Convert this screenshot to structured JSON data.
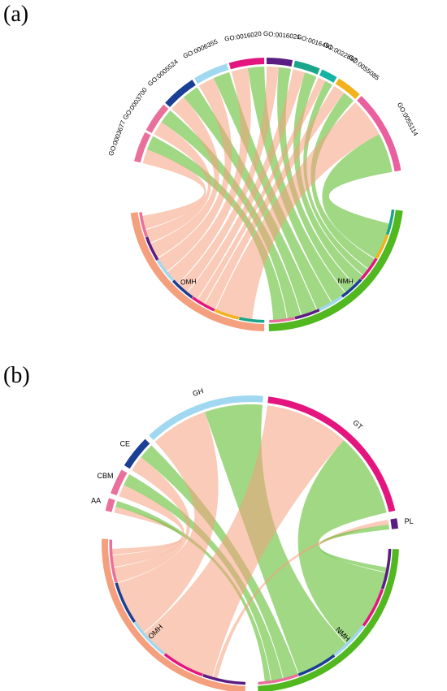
{
  "panels": [
    {
      "id": "a",
      "label": "(a)",
      "colors": {
        "OMH": "#f4a07e",
        "NMH": "#52b81f"
      },
      "groups": [
        {
          "name": "GO:0003677",
          "color": "#e9709a"
        },
        {
          "name": "GO:0003700",
          "color": "#e9709a"
        },
        {
          "name": "GO:0005524",
          "color": "#1a3f94"
        },
        {
          "name": "GO:0006355",
          "color": "#9fd8f0"
        },
        {
          "name": "GO:0016020",
          "color": "#e4157f"
        },
        {
          "name": "GO:0016021",
          "color": "#5b1d83"
        },
        {
          "name": "GO:0016491",
          "color": "#1aa68a"
        },
        {
          "name": "GO:0022857",
          "color": "#14b3a4"
        },
        {
          "name": "GO:0055085",
          "color": "#f2b21c"
        },
        {
          "name": "GO:0055114",
          "color": "#ea5f9e"
        },
        {
          "name": "NMH",
          "color": "#52b81f"
        },
        {
          "name": "OMH",
          "color": "#f4a07e"
        }
      ]
    },
    {
      "id": "b",
      "label": "(b)",
      "colors": {
        "OMH": "#f4a07e",
        "NMH": "#52b81f"
      },
      "groups": [
        {
          "name": "AA",
          "color": "#ea6f9b"
        },
        {
          "name": "CBM",
          "color": "#ea6f9b"
        },
        {
          "name": "CE",
          "color": "#1a3f94"
        },
        {
          "name": "GH",
          "color": "#9fd8f0"
        },
        {
          "name": "GT",
          "color": "#e4157f"
        },
        {
          "name": "PL",
          "color": "#5b1d83"
        },
        {
          "name": "NMH",
          "color": "#52b81f"
        },
        {
          "name": "OMH",
          "color": "#f4a07e"
        }
      ]
    }
  ]
}
